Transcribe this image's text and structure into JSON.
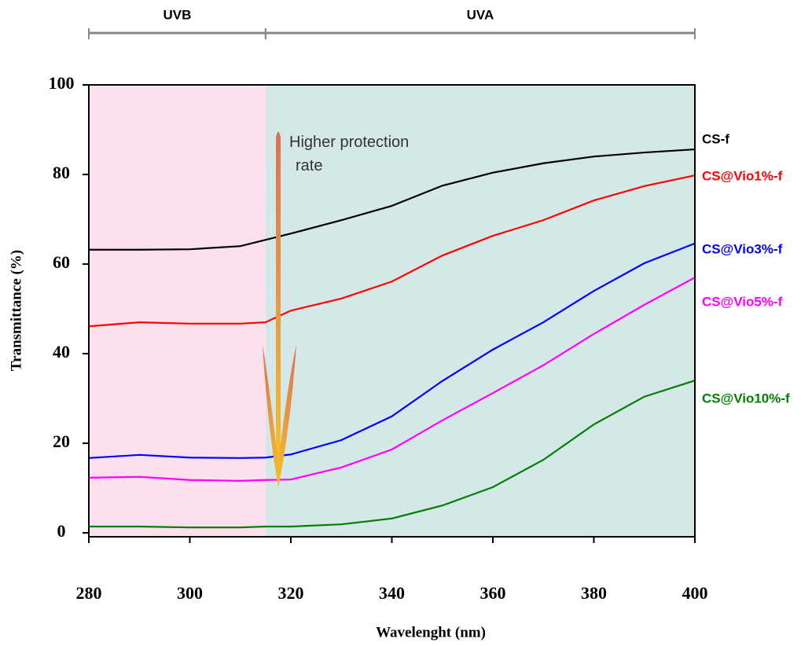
{
  "chart_data": {
    "type": "line",
    "xlabel": "Wavelenght (nm)",
    "ylabel": "Transmittance (%)",
    "annotation": "Higher protection rate",
    "regions": [
      {
        "label": "UVB",
        "range": [
          280,
          315
        ],
        "color": "#fde0ee"
      },
      {
        "label": "UVA",
        "range": [
          315,
          400
        ],
        "color": "#d5e8e8"
      }
    ],
    "x": [
      280,
      290,
      300,
      310,
      315,
      320,
      330,
      340,
      350,
      360,
      370,
      380,
      390,
      400
    ],
    "series": [
      {
        "name": "CS-f",
        "color": "#000000",
        "values": [
          63.2,
          63.2,
          63.3,
          64.0,
          65.4,
          66.8,
          69.8,
          73.0,
          77.5,
          80.4,
          82.5,
          84.0,
          84.9,
          85.6
        ]
      },
      {
        "name": "CS@Vio1%-f",
        "color": "#ff0000",
        "values": [
          46.1,
          47.0,
          46.7,
          46.7,
          47.0,
          49.6,
          52.3,
          56.1,
          61.9,
          66.3,
          69.8,
          74.2,
          77.4,
          79.8
        ]
      },
      {
        "name": "CS@Vio3%-f",
        "color": "#0000ff",
        "values": [
          16.7,
          17.4,
          16.8,
          16.7,
          16.8,
          17.5,
          20.7,
          26.0,
          33.9,
          40.9,
          47.0,
          54.0,
          60.2,
          64.6
        ]
      },
      {
        "name": "CS@Vio5%-f",
        "color": "#ff00ff",
        "values": [
          12.3,
          12.5,
          11.8,
          11.6,
          11.8,
          11.9,
          14.6,
          18.6,
          25.1,
          31.2,
          37.4,
          44.4,
          50.9,
          57.0
        ]
      },
      {
        "name": "CS@Vio10%-f",
        "color": "#008000",
        "values": [
          1.4,
          1.4,
          1.2,
          1.2,
          1.4,
          1.4,
          1.9,
          3.2,
          6.1,
          10.2,
          16.3,
          24.2,
          30.4,
          34.0
        ]
      }
    ],
    "xlim": [
      280,
      400
    ],
    "xticks": [
      280,
      300,
      320,
      340,
      360,
      380,
      400
    ],
    "ylim": [
      0,
      100
    ],
    "yticks": [
      0,
      20,
      40,
      60,
      80,
      100
    ]
  }
}
